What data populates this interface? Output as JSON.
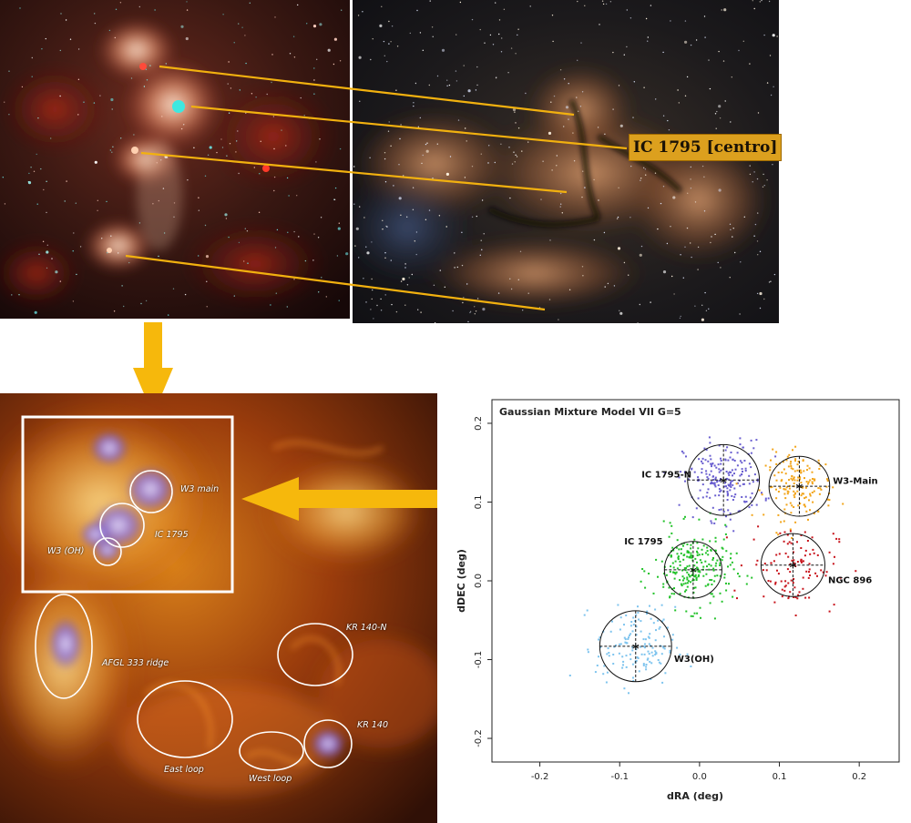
{
  "composite_title": "",
  "colors": {
    "connector": "#f2b10f",
    "arrow": "#f6b80c",
    "label_box": "#dca01e",
    "ic1795_n_points": "#6a5fd0",
    "w3_main_points": "#f2a51a",
    "ic1795_points": "#22c22a",
    "ngc896_points": "#c8141c",
    "w3oh_points": "#7ec4ee"
  },
  "optical": {
    "label": "IC 1795 [centro]"
  },
  "herschel": {
    "regions": [
      {
        "name": "W3 main"
      },
      {
        "name": "IC 1795"
      },
      {
        "name": "W3 (OH)"
      },
      {
        "name": "AFGL 333 ridge"
      },
      {
        "name": "KR 140-N"
      },
      {
        "name": "East loop"
      },
      {
        "name": "West loop"
      },
      {
        "name": "KR 140"
      }
    ]
  },
  "chart_data": {
    "type": "scatter",
    "title": "Gaussian Mixture Model VII G=5",
    "xlabel": "dRA (deg)",
    "ylabel": "dDEC (deg)",
    "xlim": [
      -0.26,
      0.25
    ],
    "ylim": [
      -0.23,
      0.23
    ],
    "xticks": [
      "-0.2",
      "-0.1",
      "0.0",
      "0.1",
      "0.2"
    ],
    "xtick_values": [
      -0.2,
      -0.1,
      0.0,
      0.1,
      0.2
    ],
    "yticks": [
      "-0.2",
      "-0.1",
      "0.0",
      "0.1",
      "0.2"
    ],
    "ytick_values": [
      -0.2,
      -0.1,
      0.0,
      0.1,
      0.2
    ],
    "grid": false,
    "legend": "none",
    "series": [
      {
        "name": "IC 1795-N",
        "color": "#6a5fd0",
        "center": [
          0.03,
          0.128
        ],
        "radius": 0.045,
        "count": 200,
        "spread": 0.045
      },
      {
        "name": "W3-Main",
        "color": "#f2a51a",
        "center": [
          0.125,
          0.12
        ],
        "radius": 0.038,
        "count": 160,
        "spread": 0.038
      },
      {
        "name": "IC 1795",
        "color": "#22c22a",
        "center": [
          -0.008,
          0.014
        ],
        "radius": 0.036,
        "count": 240,
        "spread": 0.045
      },
      {
        "name": "NGC 896",
        "color": "#c8141c",
        "center": [
          0.117,
          0.02
        ],
        "radius": 0.04,
        "count": 110,
        "spread": 0.05
      },
      {
        "name": "W3(OH)",
        "color": "#7ec4ee",
        "center": [
          -0.08,
          -0.083
        ],
        "radius": 0.045,
        "count": 150,
        "spread": 0.045
      }
    ]
  }
}
